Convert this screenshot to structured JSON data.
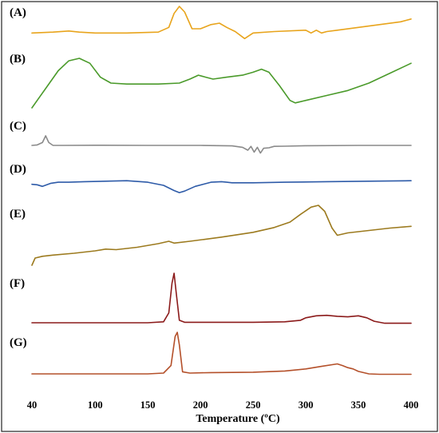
{
  "chart_data": {
    "type": "line",
    "xlabel": "Temperature (ºC)",
    "xlim": [
      40,
      400
    ],
    "x_ticks": [
      "40",
      "100",
      "150",
      "200",
      "250",
      "300",
      "350",
      "400"
    ],
    "grid": false,
    "legend": "none",
    "series": [
      {
        "name": "(A)",
        "color": "#E8A41C",
        "x": [
          40,
          60,
          75,
          85,
          100,
          130,
          160,
          170,
          175,
          180,
          185,
          192,
          200,
          210,
          218,
          225,
          233,
          242,
          250,
          270,
          300,
          305,
          310,
          315,
          320,
          330,
          350,
          370,
          390,
          400
        ],
        "y": [
          0.05,
          0.08,
          0.12,
          0.08,
          0.05,
          0.05,
          0.08,
          0.25,
          0.75,
          1.0,
          0.8,
          0.2,
          0.2,
          0.35,
          0.4,
          0.25,
          0.1,
          -0.15,
          0.05,
          0.1,
          0.15,
          0.05,
          0.15,
          0.05,
          0.1,
          0.15,
          0.25,
          0.35,
          0.45,
          0.55
        ]
      },
      {
        "name": "(B)",
        "color": "#4A9A2A",
        "x": [
          40,
          45,
          55,
          65,
          75,
          85,
          95,
          105,
          115,
          130,
          160,
          180,
          190,
          198,
          205,
          212,
          225,
          240,
          250,
          258,
          265,
          275,
          285,
          290,
          300,
          320,
          340,
          360,
          380,
          395,
          400
        ],
        "y": [
          0.0,
          0.15,
          0.45,
          0.75,
          0.95,
          1.0,
          0.9,
          0.62,
          0.5,
          0.48,
          0.48,
          0.5,
          0.58,
          0.66,
          0.62,
          0.58,
          0.62,
          0.66,
          0.72,
          0.78,
          0.72,
          0.45,
          0.15,
          0.1,
          0.15,
          0.25,
          0.35,
          0.5,
          0.7,
          0.85,
          0.9
        ]
      },
      {
        "name": "(C)",
        "color": "#8A8A8A",
        "x": [
          40,
          45,
          50,
          53,
          56,
          60,
          70,
          100,
          150,
          200,
          230,
          240,
          245,
          248,
          251,
          254,
          257,
          260,
          265,
          270,
          280,
          300,
          350,
          400
        ],
        "y": [
          0.0,
          0.05,
          0.3,
          1.0,
          0.3,
          0.0,
          0.0,
          0.02,
          0.0,
          0.0,
          -0.05,
          -0.2,
          -0.5,
          -0.1,
          -0.7,
          -0.2,
          -0.8,
          -0.3,
          -0.25,
          -0.1,
          -0.08,
          -0.03,
          0.0,
          0.0
        ]
      },
      {
        "name": "(D)",
        "color": "#2E5BA8",
        "x": [
          40,
          45,
          50,
          58,
          65,
          75,
          90,
          110,
          130,
          150,
          165,
          175,
          180,
          185,
          195,
          210,
          220,
          225,
          230,
          250,
          280,
          320,
          360,
          400
        ],
        "y": [
          0.1,
          0.05,
          -0.1,
          0.2,
          0.3,
          0.3,
          0.35,
          0.4,
          0.45,
          0.3,
          0.0,
          -0.5,
          -0.7,
          -0.55,
          -0.1,
          0.3,
          0.35,
          0.3,
          0.25,
          0.25,
          0.3,
          0.35,
          0.4,
          0.45
        ]
      },
      {
        "name": "(E)",
        "color": "#9C7A1E",
        "x": [
          40,
          43,
          50,
          60,
          80,
          100,
          110,
          120,
          140,
          160,
          170,
          175,
          190,
          220,
          250,
          270,
          285,
          295,
          305,
          312,
          318,
          325,
          330,
          340,
          360,
          380,
          400
        ],
        "y": [
          0.0,
          0.12,
          0.15,
          0.17,
          0.2,
          0.24,
          0.27,
          0.26,
          0.3,
          0.36,
          0.4,
          0.37,
          0.4,
          0.47,
          0.55,
          0.63,
          0.72,
          0.85,
          0.97,
          1.0,
          0.9,
          0.62,
          0.5,
          0.54,
          0.58,
          0.62,
          0.65
        ]
      },
      {
        "name": "(F)",
        "color": "#8B1A1A",
        "x": [
          40,
          80,
          120,
          150,
          165,
          170,
          173,
          175,
          177,
          180,
          185,
          200,
          250,
          280,
          295,
          300,
          310,
          320,
          330,
          340,
          350,
          358,
          365,
          375,
          400
        ],
        "y": [
          0.0,
          0.0,
          0.0,
          0.0,
          0.02,
          0.2,
          0.8,
          1.0,
          0.6,
          0.05,
          0.01,
          0.01,
          0.01,
          0.02,
          0.05,
          0.1,
          0.14,
          0.15,
          0.13,
          0.12,
          0.14,
          0.1,
          0.03,
          -0.01,
          -0.01
        ]
      },
      {
        "name": "(G)",
        "color": "#B4502A",
        "x": [
          40,
          80,
          120,
          150,
          165,
          172,
          176,
          178,
          180,
          183,
          190,
          210,
          250,
          280,
          300,
          315,
          330,
          335,
          340,
          345,
          350,
          360,
          370,
          385,
          400
        ],
        "y": [
          0.0,
          0.0,
          0.0,
          0.0,
          0.02,
          0.2,
          0.9,
          1.0,
          0.7,
          0.05,
          0.02,
          0.03,
          0.04,
          0.07,
          0.12,
          0.18,
          0.24,
          0.2,
          0.15,
          0.12,
          0.06,
          0.0,
          -0.01,
          -0.01,
          -0.01
        ]
      }
    ]
  }
}
